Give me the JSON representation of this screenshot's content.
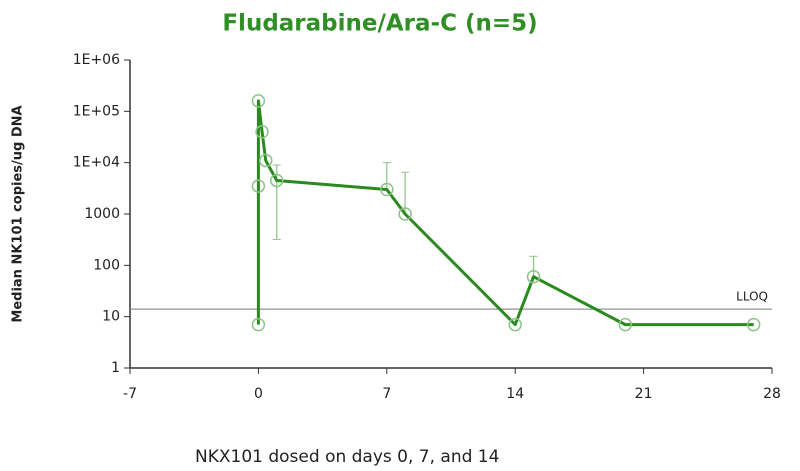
{
  "chart_data": {
    "type": "line",
    "title": "Fludarabine/Ara-C (n=5)",
    "y_label": "Median NK101 copies/ug DNA",
    "footnote": "NKX101 dosed on days 0, 7, and 14",
    "x": [
      0,
      0,
      0,
      0.2,
      0.4,
      1,
      7,
      8,
      14,
      15,
      20,
      27
    ],
    "series": [
      {
        "color": "#2b8a1f",
        "marker_color": "#8cc488",
        "values": [
          7,
          3500,
          160000,
          40000,
          11000,
          4500,
          3000,
          1000,
          7,
          60,
          7,
          7
        ]
      }
    ],
    "error_bars": [
      {
        "x": 1,
        "low": 320,
        "high": 9000
      },
      {
        "x": 7,
        "high": 10000
      },
      {
        "x": 8,
        "high": 6500
      },
      {
        "x": 15,
        "high": 150
      }
    ],
    "reference_line": {
      "label": "LLOQ",
      "value": 14
    },
    "log_y": true,
    "xlim": [
      -7,
      28
    ],
    "xticks": [
      -7,
      0,
      7,
      14,
      21,
      28
    ],
    "ylim": [
      1,
      1000000
    ],
    "yticks": [
      {
        "value": 1000000,
        "label": "1E+06"
      },
      {
        "value": 100000,
        "label": "1E+05"
      },
      {
        "value": 10000,
        "label": "1E+04"
      },
      1000,
      100,
      10,
      1
    ]
  }
}
